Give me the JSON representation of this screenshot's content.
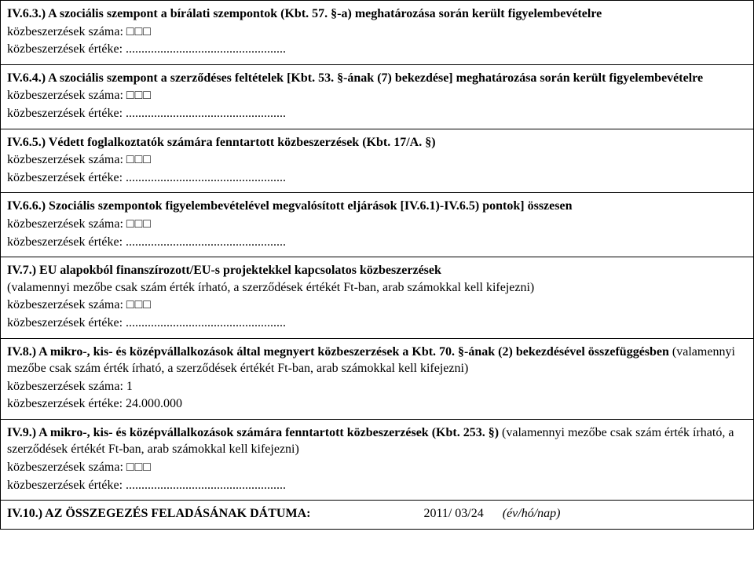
{
  "fontFamily": "Times New Roman",
  "fontSizePt": 12,
  "textColor": "#000000",
  "backgroundColor": "#ffffff",
  "borderColor": "#000000",
  "squares": "□□□",
  "dots": "...................................................",
  "labels": {
    "szama": "közbeszerzések száma:",
    "erteke": "közbeszerzések értéke:"
  },
  "s63": {
    "title": "IV.6.3.) A szociális szempont a bírálati szempontok (Kbt. 57. §-a) meghatározása során került figyelembevételre"
  },
  "s64": {
    "title": "IV.6.4.) A szociális szempont a szerződéses feltételek [Kbt. 53. §-ának (7) bekezdése] meghatározása során került figyelembevételre"
  },
  "s65": {
    "title": "IV.6.5.) Védett foglalkoztatók számára fenntartott közbeszerzések (Kbt. 17/A. §)"
  },
  "s66": {
    "title": "IV.6.6.) Szociális szempontok figyelembevételével megvalósított eljárások [IV.6.1)-IV.6.5) pontok] összesen"
  },
  "s7": {
    "title": "IV.7.) EU alapokból finanszírozott/EU-s projektekkel kapcsolatos közbeszerzések",
    "note": "(valamennyi mezőbe csak szám érték írható, a szerződések értékét Ft-ban, arab számokkal kell kifejezni)"
  },
  "s8": {
    "title": "IV.8.) A mikro-, kis- és középvállalkozások által megnyert közbeszerzések a Kbt. 70. §-ának (2) bekezdésével összefüggésben",
    "note": " (valamennyi mezőbe csak szám érték írható, a szerződések értékét Ft-ban, arab számokkal kell kifejezni)",
    "szama_val": "1",
    "erteke_val": "24.000.000"
  },
  "s9": {
    "title": "IV.9.) A mikro-, kis- és középvállalkozások számára fenntartott közbeszerzések (Kbt. 253. §)",
    "note": " (valamennyi mezőbe csak szám érték írható, a szerződések értékét Ft-ban, arab számokkal kell kifejezni)"
  },
  "s10": {
    "title": "IV.10.) AZ ÖSSZEGEZÉS FELADÁSÁNAK DÁTUMA:",
    "date": "2011/   03/24",
    "date_suffix": "(év/hó/nap)"
  }
}
